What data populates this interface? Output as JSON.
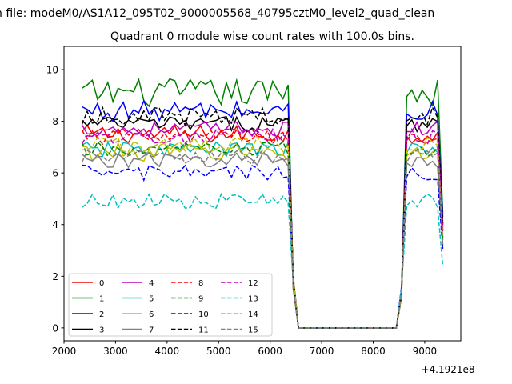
{
  "figure": {
    "suptitle": "n file: modeM0/AS1A12_095T02_9000005568_40795cztM0_level2_quad_clean"
  },
  "chart_data": {
    "type": "line",
    "title": "Quadrant 0 module wise count rates with 100.0s bins.",
    "xlabel": "",
    "ylabel": "",
    "x_offset_label": "+4.1921e8",
    "xlim": [
      2000,
      9700
    ],
    "ylim": [
      -0.5,
      10.9
    ],
    "xticks": [
      2000,
      3000,
      4000,
      5000,
      6000,
      7000,
      8000,
      9000
    ],
    "yticks": [
      0,
      2,
      4,
      6,
      8,
      10
    ],
    "grid": false,
    "legend_position": "lower-left",
    "legend_columns": 4,
    "x": [
      2350,
      2450,
      2550,
      2650,
      2750,
      2850,
      2950,
      3050,
      3150,
      3250,
      3350,
      3450,
      3550,
      3650,
      3750,
      3850,
      3950,
      4050,
      4150,
      4250,
      4350,
      4450,
      4550,
      4650,
      4750,
      4850,
      4950,
      5050,
      5150,
      5250,
      5350,
      5450,
      5550,
      5650,
      5750,
      5850,
      5950,
      6050,
      6150,
      6250,
      6350,
      6450,
      6550,
      6650,
      6750,
      6850,
      6950,
      7050,
      7150,
      7250,
      7350,
      7450,
      7550,
      7650,
      7750,
      7850,
      7950,
      8050,
      8150,
      8250,
      8350,
      8450,
      8550,
      8650,
      8750,
      8850,
      8950,
      9050,
      9150,
      9250,
      9350
    ],
    "series": [
      {
        "name": "0",
        "color": "#ff0000",
        "style": "solid",
        "base": 7.5,
        "amp": 0.35,
        "end": 7.6
      },
      {
        "name": "1",
        "color": "#008000",
        "style": "solid",
        "base": 9.1,
        "amp": 0.55,
        "end": 8.8
      },
      {
        "name": "2",
        "color": "#0000ff",
        "style": "solid",
        "base": 8.4,
        "amp": 0.4,
        "end": 8.6
      },
      {
        "name": "3",
        "color": "#000000",
        "style": "solid",
        "base": 7.9,
        "amp": 0.3,
        "end": 8.0
      },
      {
        "name": "4",
        "color": "#bf00bf",
        "style": "solid",
        "base": 7.7,
        "amp": 0.3,
        "end": 7.8
      },
      {
        "name": "5",
        "color": "#00bfbf",
        "style": "solid",
        "base": 6.9,
        "amp": 0.3,
        "end": 6.8
      },
      {
        "name": "6",
        "color": "#bfbf00",
        "style": "solid",
        "base": 6.8,
        "amp": 0.35,
        "end": 6.9
      },
      {
        "name": "7",
        "color": "#808080",
        "style": "solid",
        "base": 6.5,
        "amp": 0.3,
        "end": 6.4
      },
      {
        "name": "8",
        "color": "#ff0000",
        "style": "dashed",
        "base": 7.4,
        "amp": 0.3,
        "end": 7.5
      },
      {
        "name": "9",
        "color": "#008000",
        "style": "dashed",
        "base": 6.9,
        "amp": 0.3,
        "end": 7.0
      },
      {
        "name": "10",
        "color": "#0000ff",
        "style": "dashed",
        "base": 6.0,
        "amp": 0.3,
        "end": 6.1
      },
      {
        "name": "11",
        "color": "#000000",
        "style": "dashed",
        "base": 8.2,
        "amp": 0.35,
        "end": 8.1
      },
      {
        "name": "12",
        "color": "#bf00bf",
        "style": "dashed",
        "base": 7.4,
        "amp": 0.3,
        "end": 7.3
      },
      {
        "name": "13",
        "color": "#00bfbf",
        "style": "dashed",
        "base": 4.9,
        "amp": 0.3,
        "end": 4.8
      },
      {
        "name": "14",
        "color": "#bfbf00",
        "style": "dashed",
        "base": 7.1,
        "amp": 0.3,
        "end": 7.0
      },
      {
        "name": "15",
        "color": "#808080",
        "style": "dashed",
        "base": 6.6,
        "amp": 0.3,
        "end": 6.5
      }
    ]
  }
}
